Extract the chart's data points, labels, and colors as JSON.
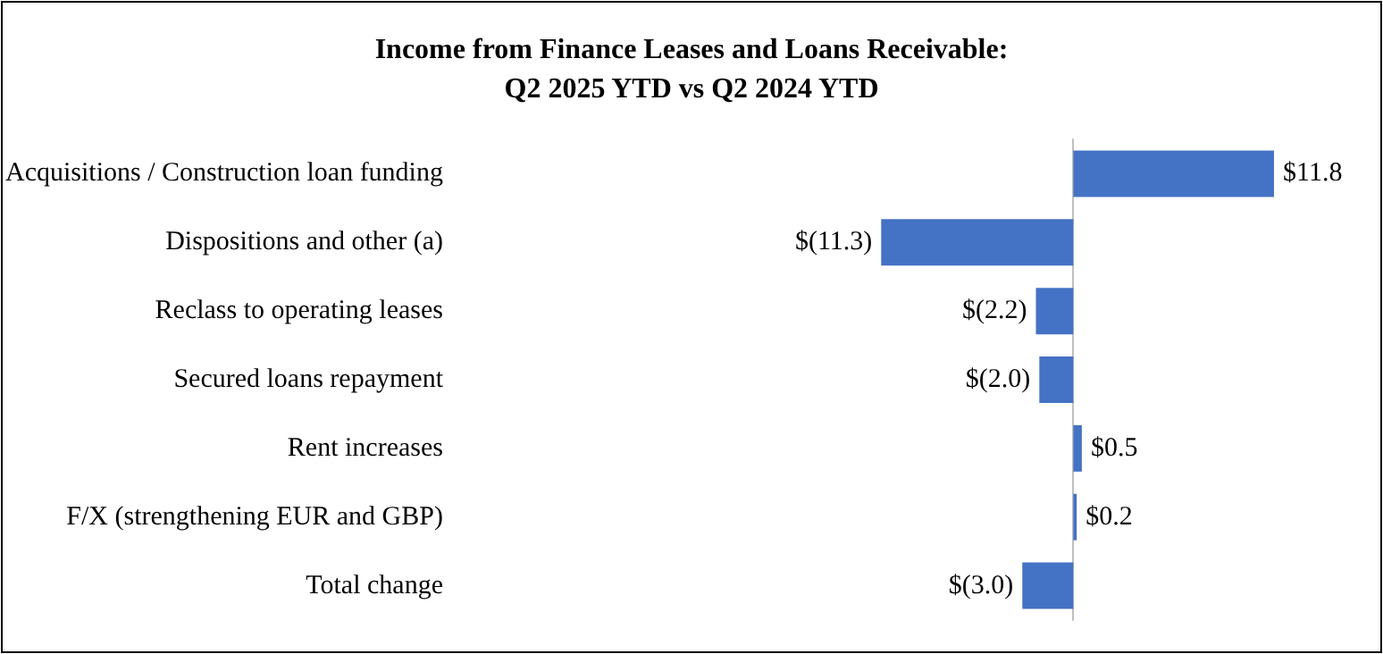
{
  "chart_data": {
    "type": "bar",
    "orientation": "horizontal",
    "title": "Income from Finance Leases and Loans Receivable:\nQ2 2025 YTD vs Q2 2024 YTD",
    "categories": [
      "Acquisitions / Construction loan funding",
      "Dispositions and other (a)",
      "Reclass to operating leases",
      "Secured loans repayment",
      "Rent increases",
      "F/X (strengthening EUR and GBP)",
      "Total change"
    ],
    "values": [
      11.8,
      -11.3,
      -2.2,
      -2.0,
      0.5,
      0.2,
      -3.0
    ],
    "value_labels": [
      "$11.8",
      "$(11.3)",
      "$(2.2)",
      "$(2.0)",
      "$0.5",
      "$0.2",
      "$(3.0)"
    ],
    "color": "#4472c4"
  }
}
